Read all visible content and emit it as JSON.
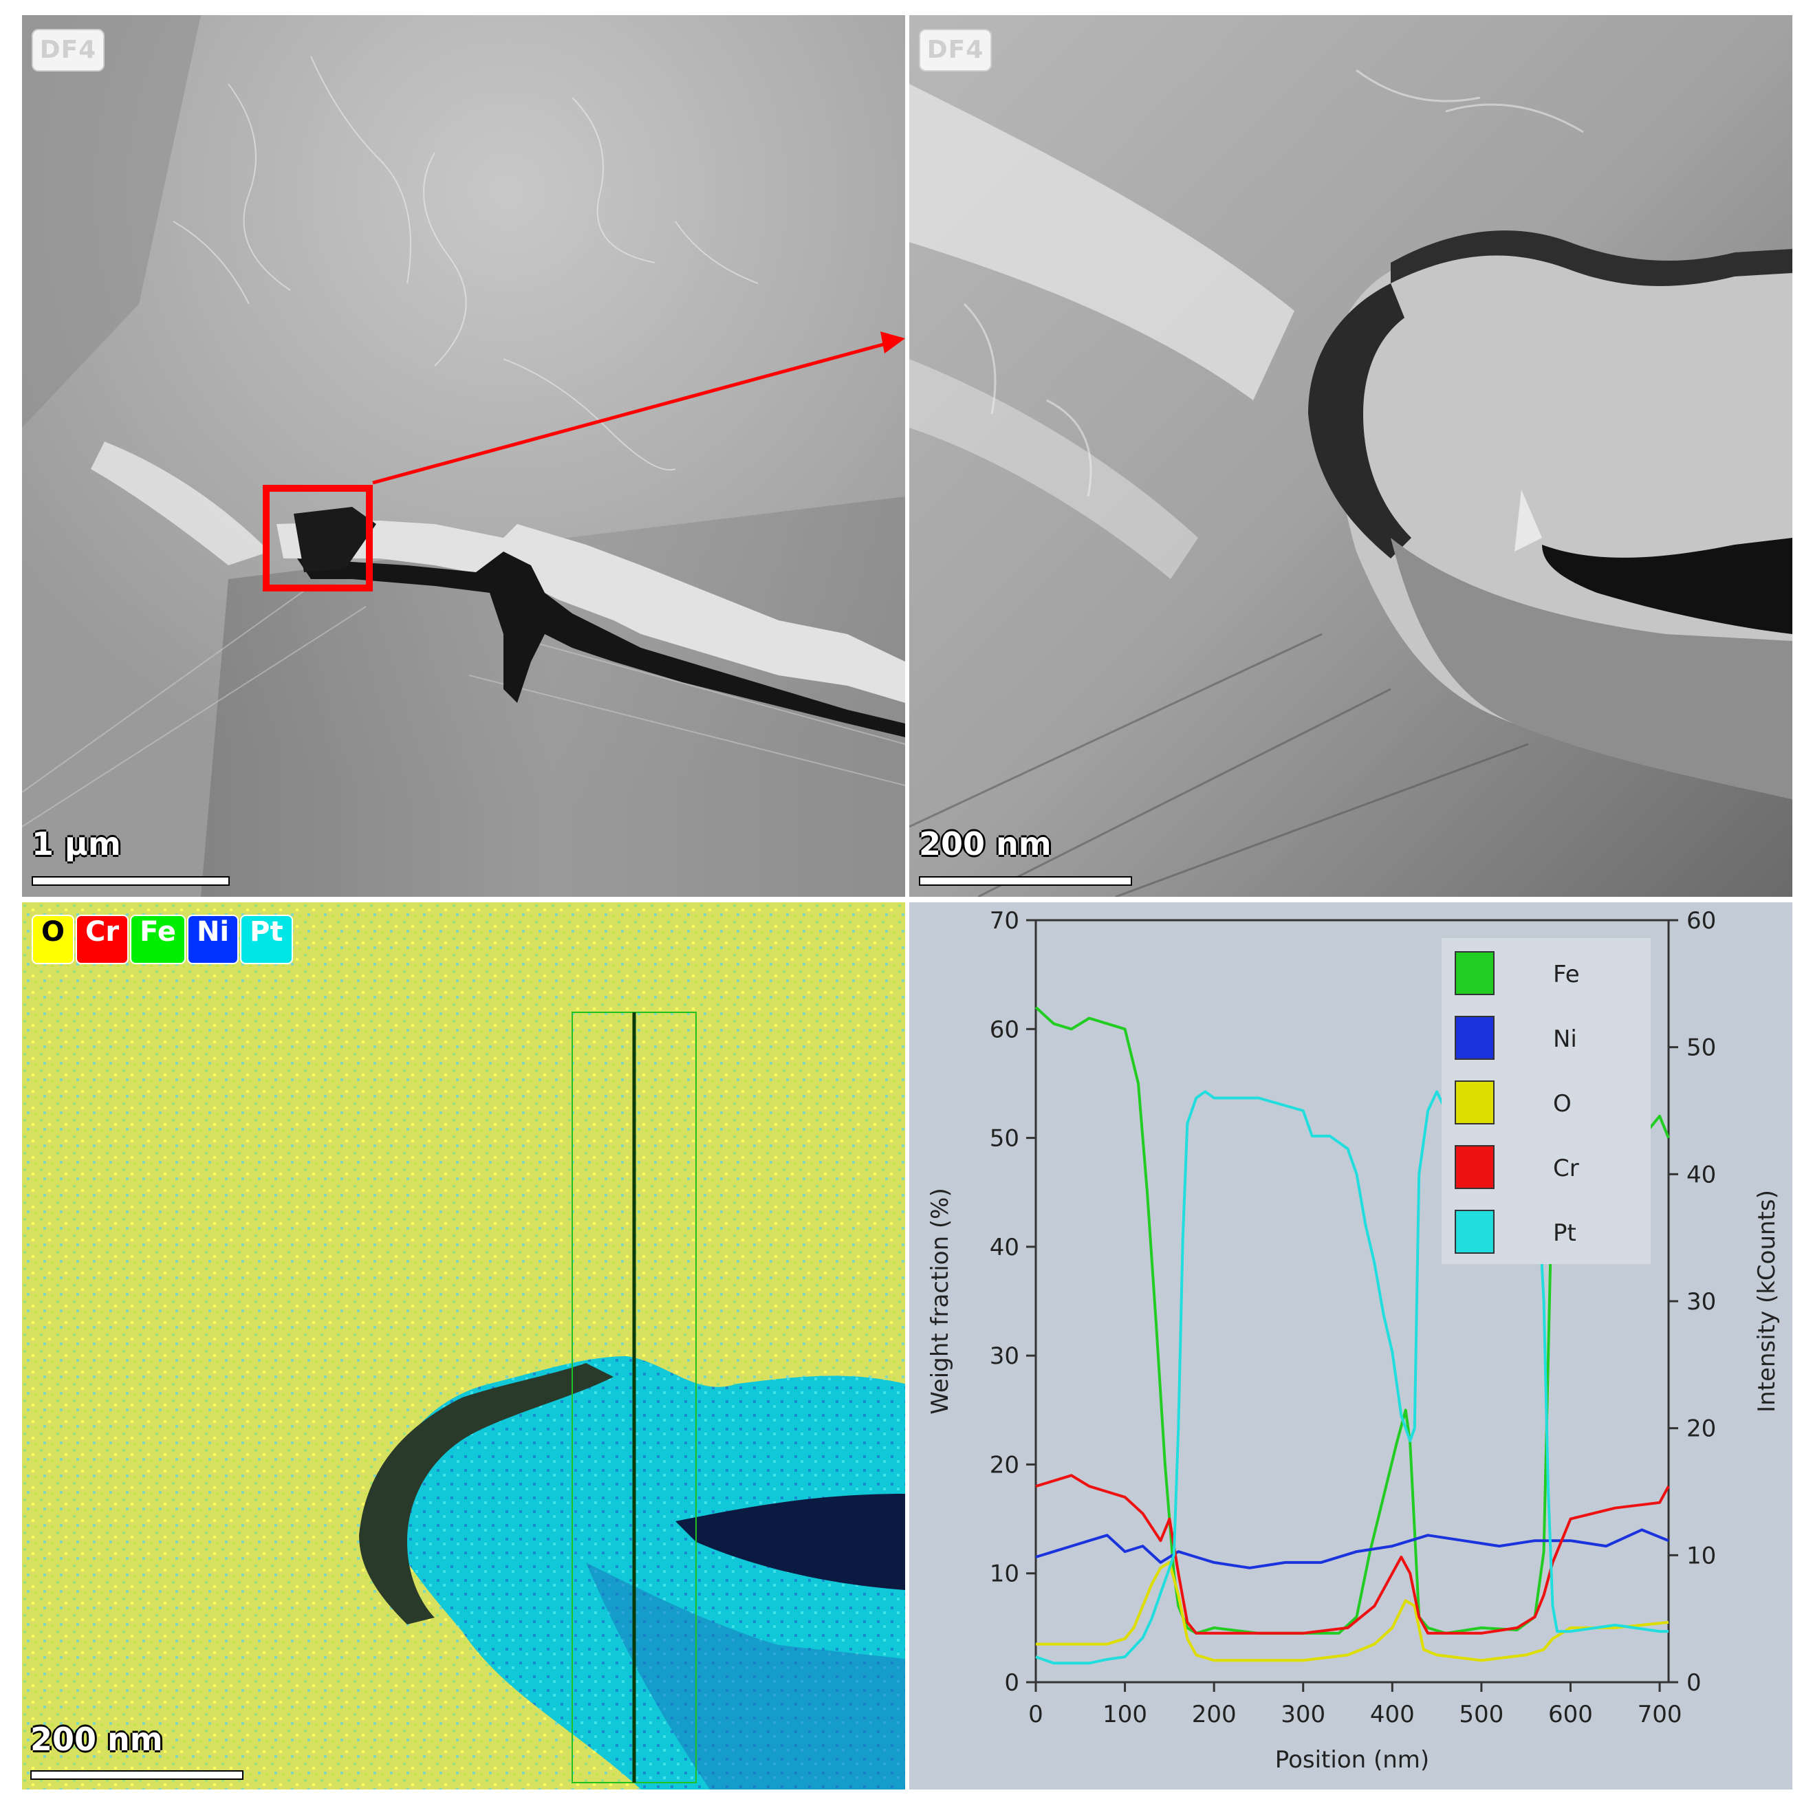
{
  "panel_tl": {
    "tag": "DF4",
    "scale_label": "1 µm"
  },
  "panel_tr": {
    "tag": "DF4",
    "scale_label": "200 nm"
  },
  "panel_bl": {
    "scale_label": "200 nm",
    "legend": [
      {
        "label": "O",
        "color": "#ffff00",
        "text_color": "#000000"
      },
      {
        "label": "Cr",
        "color": "#ff0000",
        "text_color": "#ffffff"
      },
      {
        "label": "Fe",
        "color": "#00ee00",
        "text_color": "#ffffff"
      },
      {
        "label": "Ni",
        "color": "#0033ff",
        "text_color": "#ffffff"
      },
      {
        "label": "Pt",
        "color": "#00e5e5",
        "text_color": "#ffffff"
      }
    ]
  },
  "chart_data": {
    "type": "line",
    "xlabel": "Position (nm)",
    "ylabel": "Weight fraction (%)",
    "y2label": "Intensity (kCounts)",
    "xlim": [
      0,
      710
    ],
    "ylim": [
      0,
      70
    ],
    "y2lim": [
      0,
      60
    ],
    "xticks": [
      0,
      100,
      200,
      300,
      400,
      500,
      600,
      700
    ],
    "yticks": [
      0,
      10,
      20,
      30,
      40,
      50,
      60,
      70
    ],
    "y2ticks": [
      0,
      10,
      20,
      30,
      40,
      50,
      60
    ],
    "legend_position": "top-right",
    "series": [
      {
        "name": "Fe",
        "color": "#22cc22",
        "axis": "left",
        "x": [
          0,
          20,
          40,
          60,
          80,
          100,
          115,
          125,
          135,
          145,
          155,
          160,
          170,
          180,
          200,
          250,
          300,
          340,
          360,
          375,
          390,
          405,
          415,
          420,
          430,
          440,
          460,
          500,
          540,
          560,
          570,
          575,
          580,
          590,
          600,
          620,
          640,
          650,
          660,
          680,
          700,
          710
        ],
        "y": [
          62,
          60.5,
          60,
          61,
          60.5,
          60,
          55,
          45,
          33,
          20,
          10,
          7,
          5,
          4.5,
          5,
          4.5,
          4.5,
          4.5,
          6,
          12,
          17,
          22,
          25,
          22,
          6,
          5,
          4.5,
          5,
          4.8,
          6,
          12,
          30,
          48,
          52,
          50,
          54,
          57,
          55,
          52,
          50,
          52,
          50
        ]
      },
      {
        "name": "Ni",
        "color": "#1a33dd",
        "axis": "left",
        "x": [
          0,
          20,
          40,
          60,
          80,
          100,
          120,
          140,
          160,
          180,
          200,
          240,
          280,
          320,
          360,
          400,
          440,
          480,
          520,
          560,
          600,
          640,
          680,
          710
        ],
        "y": [
          11.5,
          12,
          12.5,
          13,
          13.5,
          12,
          12.5,
          11,
          12,
          11.5,
          11,
          10.5,
          11,
          11,
          12,
          12.5,
          13.5,
          13,
          12.5,
          13,
          13,
          12.5,
          14,
          13
        ]
      },
      {
        "name": "O",
        "color": "#dddd00",
        "axis": "left",
        "x": [
          0,
          40,
          80,
          100,
          110,
          120,
          130,
          140,
          150,
          160,
          170,
          180,
          200,
          250,
          300,
          350,
          380,
          400,
          415,
          425,
          435,
          450,
          500,
          550,
          570,
          580,
          600,
          650,
          710
        ],
        "y": [
          3.5,
          3.5,
          3.5,
          4,
          5,
          7,
          9,
          10.5,
          11,
          8,
          4,
          2.5,
          2,
          2,
          2,
          2.5,
          3.5,
          5,
          7.5,
          7,
          3,
          2.5,
          2,
          2.5,
          3,
          4,
          5,
          5,
          5.5
        ]
      },
      {
        "name": "Cr",
        "color": "#ee1111",
        "axis": "left",
        "x": [
          0,
          20,
          40,
          60,
          80,
          100,
          120,
          140,
          150,
          160,
          170,
          180,
          200,
          250,
          300,
          350,
          380,
          400,
          410,
          420,
          430,
          440,
          460,
          500,
          540,
          560,
          570,
          580,
          600,
          650,
          700,
          710
        ],
        "y": [
          18,
          18.5,
          19,
          18,
          17.5,
          17,
          15.5,
          13,
          15,
          10,
          5.5,
          4.5,
          4.5,
          4.5,
          4.5,
          5,
          7,
          10,
          11.5,
          10,
          6,
          4.5,
          4.5,
          4.5,
          5,
          6,
          8,
          11,
          15,
          16,
          16.5,
          18
        ]
      },
      {
        "name": "Pt",
        "color": "#22dddd",
        "axis": "right",
        "x": [
          0,
          20,
          40,
          60,
          80,
          100,
          120,
          130,
          140,
          150,
          155,
          160,
          165,
          170,
          175,
          180,
          190,
          200,
          250,
          300,
          310,
          330,
          350,
          360,
          370,
          380,
          390,
          400,
          410,
          420,
          425,
          430,
          440,
          450,
          460,
          480,
          500,
          520,
          540,
          560,
          570,
          575,
          580,
          585,
          590,
          600,
          650,
          700,
          710
        ],
        "y": [
          2,
          1.5,
          1.5,
          1.5,
          1.8,
          2,
          3.5,
          5,
          7,
          9,
          10,
          20,
          35,
          44,
          45,
          46,
          46.5,
          46,
          46,
          45,
          43,
          43,
          42,
          40,
          36,
          33,
          29,
          26,
          21,
          19,
          20,
          40,
          45,
          46.5,
          45,
          44,
          43,
          45,
          47,
          43,
          30,
          15,
          6,
          4,
          4,
          4,
          4.5,
          4,
          4
        ]
      }
    ]
  }
}
